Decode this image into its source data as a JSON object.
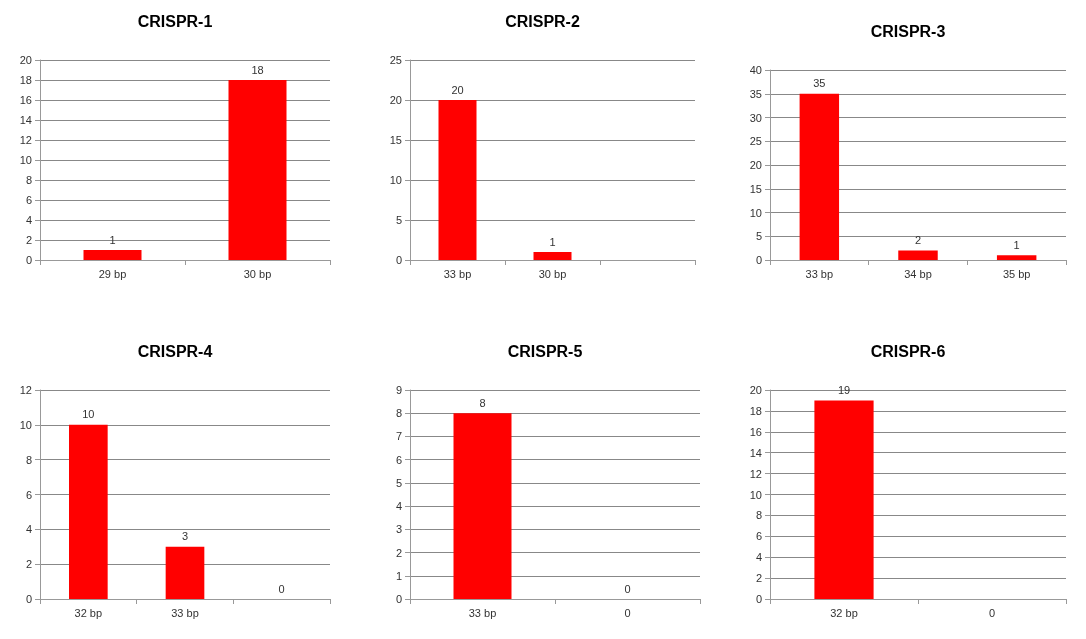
{
  "chart_data": [
    {
      "type": "bar",
      "title": "CRISPR-1",
      "categories": [
        "29 bp",
        "30 bp"
      ],
      "values": [
        1,
        18
      ],
      "color": "#ff0000",
      "ylim": [
        0,
        20
      ],
      "yticks": [
        0,
        2,
        4,
        6,
        8,
        10,
        12,
        14,
        16,
        18,
        20
      ],
      "grid": "y",
      "data_labels": true
    },
    {
      "type": "bar",
      "title": "CRISPR-2",
      "categories": [
        "33 bp",
        "30 bp",
        null
      ],
      "values": [
        20,
        1,
        null
      ],
      "color": "#ff0000",
      "ylim": [
        0,
        25
      ],
      "yticks": [
        0,
        5,
        10,
        15,
        20,
        25
      ],
      "grid": "y",
      "data_labels": true
    },
    {
      "type": "bar",
      "title": "CRISPR-3",
      "categories": [
        "33 bp",
        "34 bp",
        "35 bp"
      ],
      "values": [
        35,
        2,
        1
      ],
      "color": "#ff0000",
      "ylim": [
        0,
        40
      ],
      "yticks": [
        0,
        5,
        10,
        15,
        20,
        25,
        30,
        35,
        40
      ],
      "grid": "y",
      "data_labels": true
    },
    {
      "type": "bar",
      "title": "CRISPR-4",
      "categories": [
        "32 bp",
        "33 bp",
        null
      ],
      "values": [
        10,
        3,
        0
      ],
      "color": "#ff0000",
      "ylim": [
        0,
        12
      ],
      "yticks": [
        0,
        2,
        4,
        6,
        8,
        10,
        12
      ],
      "grid": "y",
      "data_labels": true
    },
    {
      "type": "bar",
      "title": "CRISPR-5",
      "categories": [
        "33 bp",
        "0"
      ],
      "values": [
        8,
        0
      ],
      "color": "#ff0000",
      "ylim": [
        0,
        9
      ],
      "yticks": [
        0,
        1,
        2,
        3,
        4,
        5,
        6,
        7,
        8,
        9
      ],
      "grid": "y",
      "data_labels": true
    },
    {
      "type": "bar",
      "title": "CRISPR-6",
      "categories": [
        "32 bp",
        "0"
      ],
      "values": [
        19,
        0
      ],
      "value_labels": [
        "19",
        null
      ],
      "color": "#ff0000",
      "ylim": [
        0,
        20
      ],
      "yticks": [
        0,
        2,
        4,
        6,
        8,
        10,
        12,
        14,
        16,
        18,
        20
      ],
      "grid": "y"
    }
  ]
}
